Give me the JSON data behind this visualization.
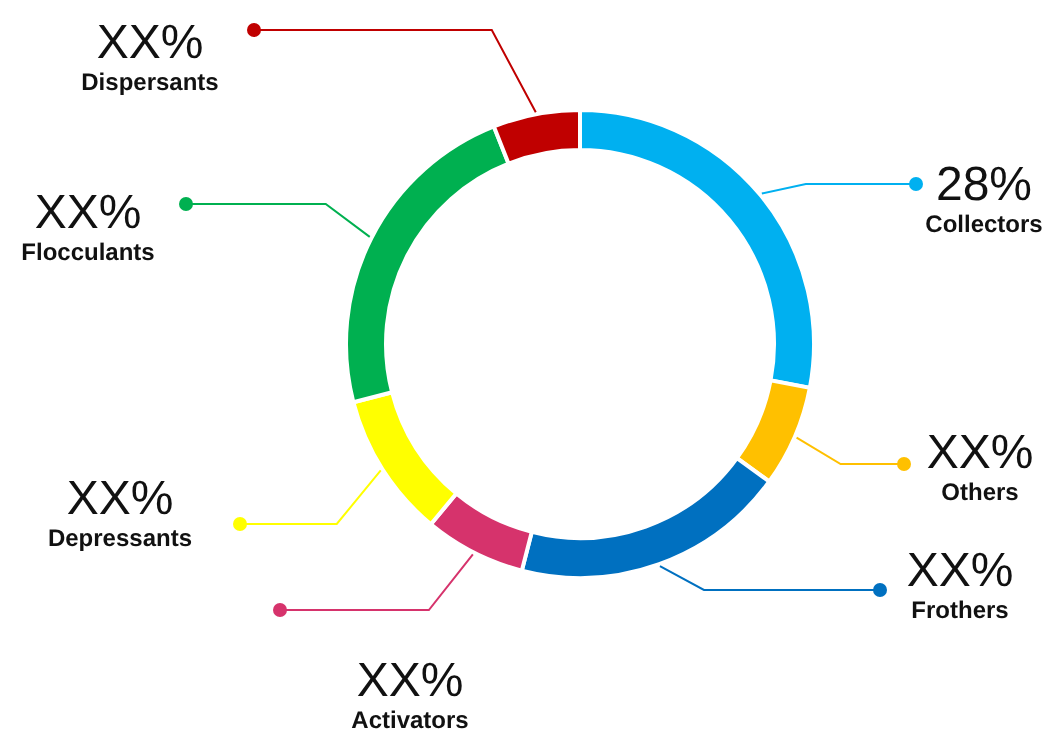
{
  "chart_data": {
    "type": "donut",
    "categories": [
      "Collectors",
      "Others",
      "Frothers",
      "Activators",
      "Depressants",
      "Flocculants",
      "Dispersants"
    ],
    "values": [
      28,
      7,
      19,
      7,
      10,
      23,
      6
    ],
    "colors": [
      "#00b0f0",
      "#ffc000",
      "#0070c0",
      "#d6336c",
      "#ffff00",
      "#00b050",
      "#c00000"
    ],
    "value_labels": [
      "28%",
      "XX%",
      "XX%",
      "XX%",
      "XX%",
      "XX%",
      "XX%"
    ]
  }
}
